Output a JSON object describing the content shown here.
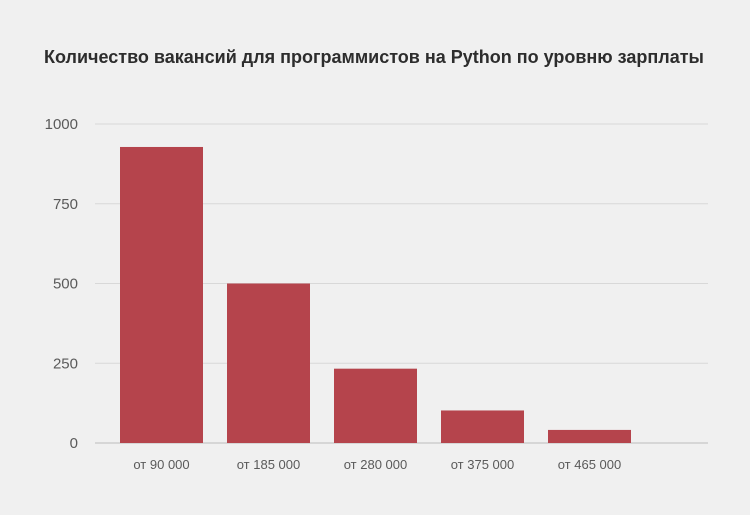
{
  "chart_data": {
    "type": "bar",
    "title": "Количество вакансий для программистов на Python по уровню зарплаты",
    "xlabel": "",
    "ylabel": "",
    "categories": [
      "от 90 000",
      "от 185 000",
      "от 280 000",
      "от 375 000",
      "от 465 000"
    ],
    "values": [
      928,
      500,
      233,
      102,
      41
    ],
    "ylim": [
      0,
      1000
    ],
    "yticks": [
      0,
      250,
      500,
      750,
      1000
    ],
    "grid": true,
    "legend": "none",
    "bar_color": "#b5444c",
    "grid_color": "#d8d8d8",
    "background": "#f0f0f0"
  }
}
